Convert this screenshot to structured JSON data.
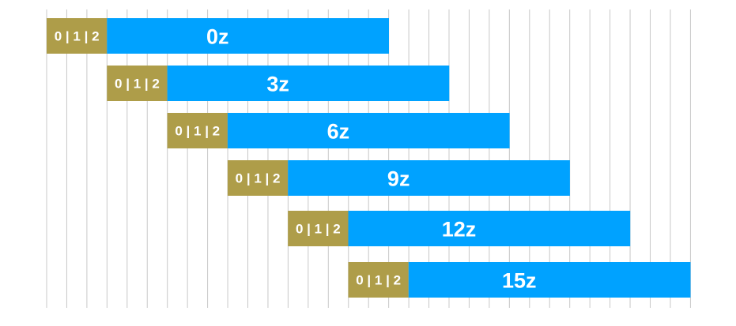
{
  "colors": {
    "label_segment": "#ae9d49",
    "main_segment": "#00a2ff",
    "text": "#ffffff",
    "grid": "#c8c8c8"
  },
  "rows": [
    {
      "tag": "0 | 1 | 2",
      "label": "0z"
    },
    {
      "tag": "0 | 1 | 2",
      "label": "3z"
    },
    {
      "tag": "0 | 1 | 2",
      "label": "6z"
    },
    {
      "tag": "0 | 1 | 2",
      "label": "9z"
    },
    {
      "tag": "0 | 1 | 2",
      "label": "12z"
    },
    {
      "tag": "0 | 1 | 2",
      "label": "15z"
    }
  ]
}
